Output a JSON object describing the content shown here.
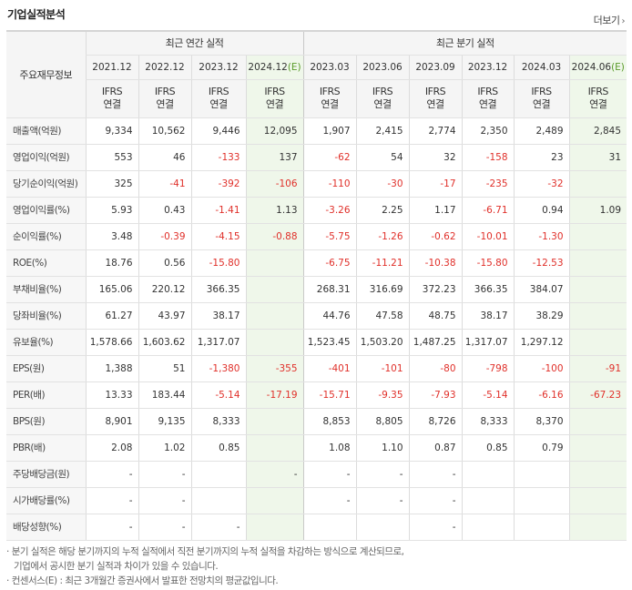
{
  "title": "기업실적분석",
  "more": "더보기",
  "header": {
    "label": "주요재무정보",
    "annual_title": "최근 연간 실적",
    "quarter_title": "최근 분기 실적",
    "annual_periods": [
      "2021.12",
      "2022.12",
      "2023.12",
      "2024.12(E)"
    ],
    "quarter_periods": [
      "2023.03",
      "2023.06",
      "2023.09",
      "2023.12",
      "2024.03",
      "2024.06(E)"
    ],
    "basis_top": "IFRS",
    "basis_bottom": "연결"
  },
  "rows": [
    {
      "label": "매출액(억원)",
      "values": [
        "9,334",
        "10,562",
        "9,446",
        "12,095",
        "1,907",
        "2,415",
        "2,774",
        "2,350",
        "2,489",
        "2,845"
      ]
    },
    {
      "label": "영업이익(억원)",
      "values": [
        "553",
        "46",
        "-133",
        "137",
        "-62",
        "54",
        "32",
        "-158",
        "23",
        "31"
      ]
    },
    {
      "label": "당기순이익(억원)",
      "values": [
        "325",
        "-41",
        "-392",
        "-106",
        "-110",
        "-30",
        "-17",
        "-235",
        "-32",
        ""
      ]
    },
    {
      "label": "영업이익률(%)",
      "values": [
        "5.93",
        "0.43",
        "-1.41",
        "1.13",
        "-3.26",
        "2.25",
        "1.17",
        "-6.71",
        "0.94",
        "1.09"
      ]
    },
    {
      "label": "순이익률(%)",
      "values": [
        "3.48",
        "-0.39",
        "-4.15",
        "-0.88",
        "-5.75",
        "-1.26",
        "-0.62",
        "-10.01",
        "-1.30",
        ""
      ]
    },
    {
      "label": "ROE(%)",
      "values": [
        "18.76",
        "0.56",
        "-15.80",
        "",
        "-6.75",
        "-11.21",
        "-10.38",
        "-15.80",
        "-12.53",
        ""
      ]
    },
    {
      "label": "부채비율(%)",
      "values": [
        "165.06",
        "220.12",
        "366.35",
        "",
        "268.31",
        "316.69",
        "372.23",
        "366.35",
        "384.07",
        ""
      ]
    },
    {
      "label": "당좌비율(%)",
      "values": [
        "61.27",
        "43.97",
        "38.17",
        "",
        "44.76",
        "47.58",
        "48.75",
        "38.17",
        "38.29",
        ""
      ]
    },
    {
      "label": "유보율(%)",
      "values": [
        "1,578.66",
        "1,603.62",
        "1,317.07",
        "",
        "1,523.45",
        "1,503.20",
        "1,487.25",
        "1,317.07",
        "1,297.12",
        ""
      ]
    },
    {
      "label": "EPS(원)",
      "values": [
        "1,388",
        "51",
        "-1,380",
        "-355",
        "-401",
        "-101",
        "-80",
        "-798",
        "-100",
        "-91"
      ]
    },
    {
      "label": "PER(배)",
      "values": [
        "13.33",
        "183.44",
        "-5.14",
        "-17.19",
        "-15.71",
        "-9.35",
        "-7.93",
        "-5.14",
        "-6.16",
        "-67.23"
      ]
    },
    {
      "label": "BPS(원)",
      "values": [
        "8,901",
        "9,135",
        "8,333",
        "",
        "8,853",
        "8,805",
        "8,726",
        "8,333",
        "8,370",
        ""
      ]
    },
    {
      "label": "PBR(배)",
      "values": [
        "2.08",
        "1.02",
        "0.85",
        "",
        "1.08",
        "1.10",
        "0.87",
        "0.85",
        "0.79",
        ""
      ]
    },
    {
      "label": "주당배당금(원)",
      "values": [
        "-",
        "-",
        "",
        "-",
        "-",
        "-",
        "-",
        "",
        "",
        ""
      ]
    },
    {
      "label": "시가배당률(%)",
      "values": [
        "-",
        "-",
        "",
        "",
        "-",
        "-",
        "-",
        "",
        "",
        ""
      ]
    },
    {
      "label": "배당성향(%)",
      "values": [
        "-",
        "-",
        "-",
        "",
        "",
        "",
        "-",
        "",
        "",
        ""
      ]
    }
  ],
  "notes": [
    "분기 실적은 해당 분기까지의 누적 실적에서 직전 분기까지의 누적 실적을 차감하는 방식으로 계산되므로,",
    "기업에서 공시한 분기 실적과 차이가 있을 수 있습니다.",
    "컨센서스(E) : 최근 3개월간 증권사에서 발표한 전망치의 평균값입니다."
  ]
}
